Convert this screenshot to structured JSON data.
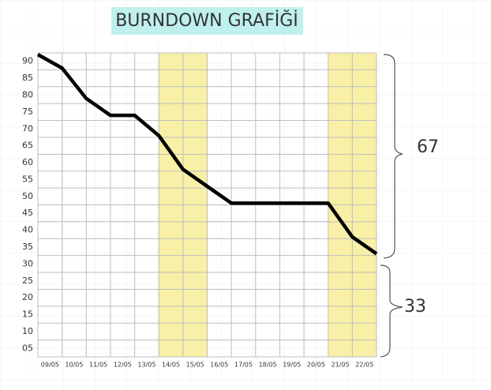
{
  "chart_data": {
    "type": "line",
    "title": "BURNDOWN GRAFİĞİ",
    "categories": [
      null,
      "09/05",
      "10/05",
      "11/05",
      "12/05",
      "13/05",
      "14/05",
      "15/05",
      "16/05",
      "17/05",
      "18/05",
      "19/05",
      "20/05",
      "21/05",
      "22/05"
    ],
    "series": [
      {
        "name": null,
        "color": "#000000",
        "values": [
          92,
          88,
          79,
          74,
          74,
          68,
          58,
          53,
          48,
          48,
          48,
          48,
          48,
          38,
          33
        ]
      }
    ],
    "ylim": [
      2.5,
      92.5
    ],
    "yticks": [
      90,
      85,
      80,
      75,
      70,
      65,
      60,
      55,
      50,
      45,
      40,
      35,
      30,
      25,
      20,
      15,
      10,
      {
        "value": 5,
        "label": "05"
      }
    ],
    "highlight": [
      6,
      7,
      13,
      14
    ],
    "highlight_color": "#f7f0a6",
    "grid": true,
    "annotations": [
      "67",
      "33"
    ]
  }
}
